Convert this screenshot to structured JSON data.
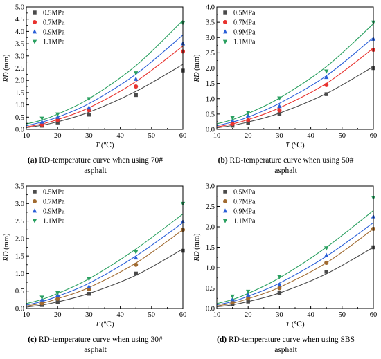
{
  "chart_data": [
    {
      "type": "scatter",
      "caption_letter": "(a)",
      "caption_text": " RD-temperature curve when using 70#",
      "caption_line2": "asphalt",
      "xlabel": "T",
      "xlabel_unit": "(℃)",
      "ylabel": "RD",
      "ylabel_unit": "(mm)",
      "xlim": [
        10,
        60
      ],
      "ylim": [
        0,
        5
      ],
      "xticks": [
        10,
        20,
        30,
        40,
        50,
        60
      ],
      "yticks": [
        0,
        0.5,
        1.0,
        1.5,
        2.0,
        2.5,
        3.0,
        3.5,
        4.0,
        4.5,
        5.0
      ],
      "ytick_labels": [
        "0.0",
        "0.5",
        "1.0",
        "1.5",
        "2.0",
        "2.5",
        "3.0",
        "3.5",
        "4.0",
        "4.5",
        "5.0"
      ],
      "legend_position": "top-left",
      "series": [
        {
          "name": "0.5MPa",
          "color": "#4a4a4a",
          "marker": "square",
          "x": [
            15,
            20,
            30,
            45,
            60
          ],
          "y": [
            0.15,
            0.28,
            0.6,
            1.4,
            2.4
          ],
          "fit_x": [
            10,
            15,
            20,
            30,
            45,
            60
          ],
          "fit_y": [
            0.07,
            0.17,
            0.31,
            0.7,
            1.55,
            2.65
          ]
        },
        {
          "name": "0.7MPa",
          "color": "#e8322e",
          "marker": "circle",
          "x": [
            15,
            20,
            30,
            45,
            60
          ],
          "y": [
            0.2,
            0.38,
            0.78,
            1.75,
            3.18
          ],
          "fit_x": [
            10,
            15,
            20,
            30,
            45,
            60
          ],
          "fit_y": [
            0.1,
            0.22,
            0.4,
            0.88,
            1.95,
            3.4
          ]
        },
        {
          "name": "0.9MPa",
          "color": "#2a5fd8",
          "marker": "triangle-up",
          "x": [
            15,
            20,
            30,
            45,
            60
          ],
          "y": [
            0.3,
            0.5,
            0.88,
            2.05,
            3.5
          ],
          "fit_x": [
            10,
            15,
            20,
            30,
            45,
            60
          ],
          "fit_y": [
            0.15,
            0.3,
            0.5,
            1.05,
            2.25,
            3.85
          ]
        },
        {
          "name": "1.1MPa",
          "color": "#2aa060",
          "marker": "triangle-down",
          "x": [
            15,
            20,
            30,
            45,
            60
          ],
          "y": [
            0.45,
            0.62,
            1.25,
            2.3,
            4.35
          ],
          "fit_x": [
            10,
            15,
            20,
            30,
            45,
            60
          ],
          "fit_y": [
            0.22,
            0.38,
            0.62,
            1.25,
            2.6,
            4.45
          ]
        }
      ]
    },
    {
      "type": "scatter",
      "caption_letter": "(b)",
      "caption_text": " RD-temperature curve when using 50#",
      "caption_line2": "asphalt",
      "xlabel": "T",
      "xlabel_unit": "(℃)",
      "ylabel": "RD",
      "ylabel_unit": "(mm)",
      "xlim": [
        10,
        60
      ],
      "ylim": [
        0,
        4
      ],
      "xticks": [
        10,
        20,
        30,
        40,
        50,
        60
      ],
      "yticks": [
        0,
        0.5,
        1.0,
        1.5,
        2.0,
        2.5,
        3.0,
        3.5,
        4.0
      ],
      "ytick_labels": [
        "0.0",
        "0.5",
        "1.0",
        "1.5",
        "2.0",
        "2.5",
        "3.0",
        "3.5",
        "4.0"
      ],
      "legend_position": "top-left",
      "series": [
        {
          "name": "0.5MPa",
          "color": "#4a4a4a",
          "marker": "square",
          "x": [
            15,
            20,
            30,
            45,
            60
          ],
          "y": [
            0.12,
            0.22,
            0.5,
            1.15,
            2.0
          ],
          "fit_x": [
            10,
            15,
            20,
            30,
            45,
            60
          ],
          "fit_y": [
            0.05,
            0.13,
            0.24,
            0.53,
            1.17,
            2.05
          ]
        },
        {
          "name": "0.7MPa",
          "color": "#e8322e",
          "marker": "circle",
          "x": [
            15,
            20,
            30,
            45,
            60
          ],
          "y": [
            0.18,
            0.3,
            0.62,
            1.45,
            2.6
          ],
          "fit_x": [
            10,
            15,
            20,
            30,
            45,
            60
          ],
          "fit_y": [
            0.08,
            0.18,
            0.32,
            0.7,
            1.5,
            2.65
          ]
        },
        {
          "name": "0.9MPa",
          "color": "#2a5fd8",
          "marker": "triangle-up",
          "x": [
            15,
            20,
            30,
            45,
            60
          ],
          "y": [
            0.28,
            0.45,
            0.75,
            1.7,
            2.95
          ],
          "fit_x": [
            10,
            15,
            20,
            30,
            45,
            60
          ],
          "fit_y": [
            0.12,
            0.24,
            0.4,
            0.85,
            1.75,
            3.0
          ]
        },
        {
          "name": "1.1MPa",
          "color": "#2aa060",
          "marker": "triangle-down",
          "x": [
            15,
            20,
            30,
            45,
            60
          ],
          "y": [
            0.38,
            0.55,
            1.02,
            1.9,
            3.5
          ],
          "fit_x": [
            10,
            15,
            20,
            30,
            45,
            60
          ],
          "fit_y": [
            0.18,
            0.32,
            0.52,
            1.02,
            2.05,
            3.45
          ]
        }
      ]
    },
    {
      "type": "scatter",
      "caption_letter": "(c)",
      "caption_text": " RD-temperature curve when using 30#",
      "caption_line2": "asphalt",
      "xlabel": "T",
      "xlabel_unit": "(℃)",
      "ylabel": "RD",
      "ylabel_unit": "(mm)",
      "xlim": [
        10,
        60
      ],
      "ylim": [
        0,
        3.5
      ],
      "xticks": [
        10,
        20,
        30,
        40,
        50,
        60
      ],
      "yticks": [
        0,
        0.5,
        1.0,
        1.5,
        2.0,
        2.5,
        3.0,
        3.5
      ],
      "ytick_labels": [
        "0.0",
        "0.5",
        "1.0",
        "1.5",
        "2.0",
        "2.5",
        "3.0",
        "3.5"
      ],
      "legend_position": "top-left",
      "series": [
        {
          "name": "0.5MPa",
          "color": "#4a4a4a",
          "marker": "square",
          "x": [
            15,
            20,
            30,
            45,
            60
          ],
          "y": [
            0.1,
            0.18,
            0.42,
            1.0,
            1.65
          ],
          "fit_x": [
            10,
            15,
            20,
            30,
            45,
            60
          ],
          "fit_y": [
            0.04,
            0.1,
            0.19,
            0.43,
            0.95,
            1.7
          ]
        },
        {
          "name": "0.7MPa",
          "color": "#a06a30",
          "marker": "circle",
          "x": [
            15,
            20,
            30,
            45,
            60
          ],
          "y": [
            0.15,
            0.28,
            0.55,
            1.25,
            2.25
          ],
          "fit_x": [
            10,
            15,
            20,
            30,
            45,
            60
          ],
          "fit_y": [
            0.07,
            0.15,
            0.28,
            0.6,
            1.3,
            2.25
          ]
        },
        {
          "name": "0.9MPa",
          "color": "#2a5fd8",
          "marker": "triangle-up",
          "x": [
            15,
            20,
            30,
            45,
            60
          ],
          "y": [
            0.25,
            0.38,
            0.62,
            1.45,
            2.48
          ],
          "fit_x": [
            10,
            15,
            20,
            30,
            45,
            60
          ],
          "fit_y": [
            0.1,
            0.2,
            0.35,
            0.72,
            1.5,
            2.45
          ]
        },
        {
          "name": "1.1MPa",
          "color": "#2aa060",
          "marker": "triangle-down",
          "x": [
            15,
            20,
            30,
            45,
            60
          ],
          "y": [
            0.32,
            0.45,
            0.85,
            1.62,
            3.0
          ],
          "fit_x": [
            10,
            15,
            20,
            30,
            45,
            60
          ],
          "fit_y": [
            0.14,
            0.26,
            0.43,
            0.85,
            1.7,
            2.7
          ]
        }
      ]
    },
    {
      "type": "scatter",
      "caption_letter": "(d)",
      "caption_text": " RD-temperature curve when using SBS",
      "caption_line2": "asphalt",
      "xlabel": "T",
      "xlabel_unit": "(℃)",
      "ylabel": "RD",
      "ylabel_unit": "(mm)",
      "xlim": [
        10,
        60
      ],
      "ylim": [
        0,
        3.0
      ],
      "xticks": [
        10,
        20,
        30,
        40,
        50,
        60
      ],
      "yticks": [
        0,
        0.5,
        1.0,
        1.5,
        2.0,
        2.5,
        3.0
      ],
      "ytick_labels": [
        "0.0",
        "0.5",
        "1.0",
        "1.5",
        "2.0",
        "2.5",
        "3.0"
      ],
      "legend_position": "top-left",
      "series": [
        {
          "name": "0.5MPa",
          "color": "#4a4a4a",
          "marker": "square",
          "x": [
            15,
            20,
            30,
            45,
            60
          ],
          "y": [
            0.1,
            0.17,
            0.38,
            0.9,
            1.5
          ],
          "fit_x": [
            10,
            15,
            20,
            30,
            45,
            60
          ],
          "fit_y": [
            0.04,
            0.09,
            0.17,
            0.38,
            0.85,
            1.5
          ]
        },
        {
          "name": "0.7MPa",
          "color": "#a06a30",
          "marker": "circle",
          "x": [
            15,
            20,
            30,
            45,
            60
          ],
          "y": [
            0.15,
            0.25,
            0.5,
            1.12,
            1.95
          ],
          "fit_x": [
            10,
            15,
            20,
            30,
            45,
            60
          ],
          "fit_y": [
            0.06,
            0.13,
            0.24,
            0.52,
            1.12,
            1.95
          ]
        },
        {
          "name": "0.9MPa",
          "color": "#2a5fd8",
          "marker": "triangle-up",
          "x": [
            15,
            20,
            30,
            45,
            60
          ],
          "y": [
            0.22,
            0.33,
            0.58,
            1.3,
            2.25
          ],
          "fit_x": [
            10,
            15,
            20,
            30,
            45,
            60
          ],
          "fit_y": [
            0.09,
            0.17,
            0.3,
            0.62,
            1.28,
            2.1
          ]
        },
        {
          "name": "1.1MPa",
          "color": "#2aa060",
          "marker": "triangle-down",
          "x": [
            15,
            20,
            30,
            45,
            60
          ],
          "y": [
            0.3,
            0.42,
            0.78,
            1.48,
            2.72
          ],
          "fit_x": [
            10,
            15,
            20,
            30,
            45,
            60
          ],
          "fit_y": [
            0.12,
            0.22,
            0.37,
            0.75,
            1.5,
            2.4
          ]
        }
      ]
    }
  ]
}
